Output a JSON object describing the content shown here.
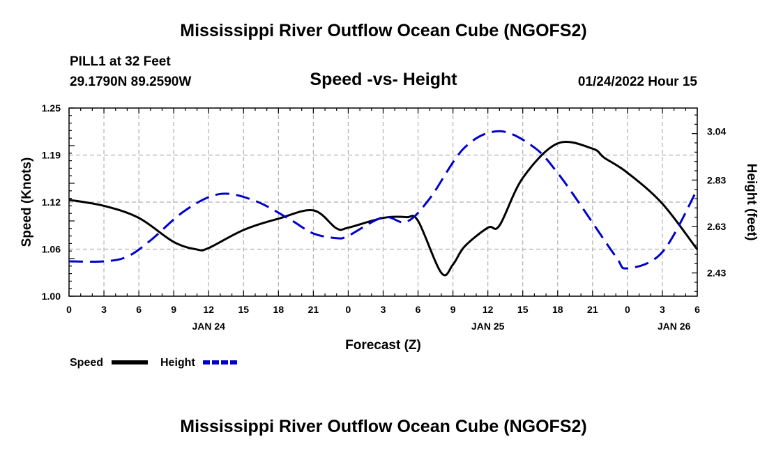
{
  "header": {
    "title": "Mississippi River Outflow Ocean Cube (NGOFS2)",
    "station": "PILL1 at 32 Feet",
    "coords": "29.1790N  89.2590W",
    "datetime": "01/24/2022 Hour 15"
  },
  "footer": {
    "title": "Mississippi River Outflow Ocean Cube (NGOFS2)"
  },
  "chart_data": {
    "type": "line",
    "title": "Speed -vs- Height",
    "xlabel": "Forecast (Z)",
    "ylabel_left": "Speed (Knots)",
    "ylabel_right": "Height (feet)",
    "x_range": [
      0,
      54
    ],
    "x_tick_labels": [
      "0",
      "3",
      "6",
      "9",
      "12",
      "15",
      "18",
      "21",
      "0",
      "3",
      "6",
      "9",
      "12",
      "15",
      "18",
      "21",
      "0",
      "3",
      "6"
    ],
    "date_labels": [
      {
        "label": "JAN 24",
        "x": 12
      },
      {
        "label": "JAN 25",
        "x": 36
      },
      {
        "label": "JAN 26",
        "x": 52
      }
    ],
    "left_axis": {
      "range": [
        1.0,
        1.25
      ],
      "ticks": [
        "1.00",
        "1.06",
        "1.12",
        "1.19",
        "1.25"
      ]
    },
    "right_axis": {
      "range": [
        2.33,
        3.14
      ],
      "ticks": [
        "2.43",
        "2.63",
        "2.83",
        "3.04"
      ]
    },
    "grid": true,
    "series": [
      {
        "name": "Speed",
        "axis": "left",
        "color": "#000000",
        "style": "solid",
        "x": [
          0,
          3,
          6,
          9,
          11,
          12,
          15,
          18,
          21,
          23,
          24,
          27,
          29,
          30,
          32,
          33,
          34,
          36,
          37,
          39,
          42,
          45,
          46,
          48,
          51,
          54
        ],
        "y": [
          1.128,
          1.12,
          1.104,
          1.072,
          1.062,
          1.064,
          1.088,
          1.103,
          1.114,
          1.09,
          1.091,
          1.104,
          1.105,
          1.1,
          1.031,
          1.042,
          1.066,
          1.091,
          1.094,
          1.157,
          1.203,
          1.196,
          1.184,
          1.164,
          1.123,
          1.062
        ]
      },
      {
        "name": "Height",
        "axis": "right",
        "color": "#0000cc",
        "style": "dashed",
        "x": [
          0,
          3,
          5,
          7,
          10,
          13,
          16,
          19,
          21,
          23,
          24,
          27,
          29,
          31,
          34,
          37,
          40,
          42,
          44,
          47,
          48,
          51,
          54
        ],
        "y": [
          2.48,
          2.48,
          2.5,
          2.57,
          2.7,
          2.77,
          2.74,
          2.66,
          2.6,
          2.58,
          2.59,
          2.67,
          2.65,
          2.75,
          2.97,
          3.04,
          2.97,
          2.86,
          2.72,
          2.5,
          2.45,
          2.52,
          2.79
        ]
      }
    ],
    "legend": [
      {
        "label": "Speed",
        "color": "#000000",
        "style": "solid"
      },
      {
        "label": "Height",
        "color": "#0000cc",
        "style": "dashed"
      }
    ]
  }
}
